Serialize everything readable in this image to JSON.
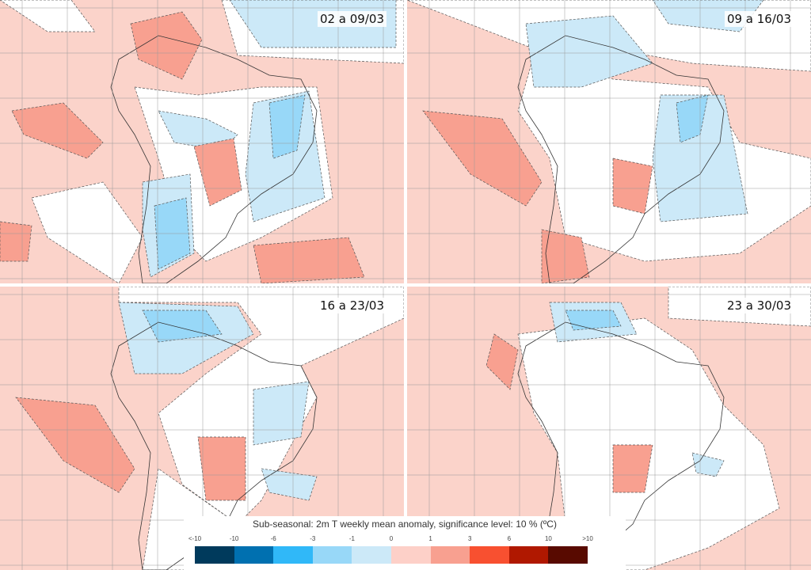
{
  "panels": [
    {
      "label": "02 a 09/03"
    },
    {
      "label": "09 a 16/03"
    },
    {
      "label": "16 a 23/03"
    },
    {
      "label": "23 a 30/03"
    }
  ],
  "legend": {
    "title": "Sub-seasonal: 2m T weekly mean anomaly, significance level: 10 % (ºC)",
    "ticks": [
      "<-10",
      "-10",
      "-6",
      "-3",
      "-1",
      "0",
      "1",
      "3",
      "6",
      "10",
      ">10"
    ],
    "colors": [
      "#003a5c",
      "#0070b0",
      "#30b8f8",
      "#98d8f8",
      "#cce9f8",
      "#fdd0c8",
      "#f8a090",
      "#f85030",
      "#b01800",
      "#580a00"
    ]
  }
}
